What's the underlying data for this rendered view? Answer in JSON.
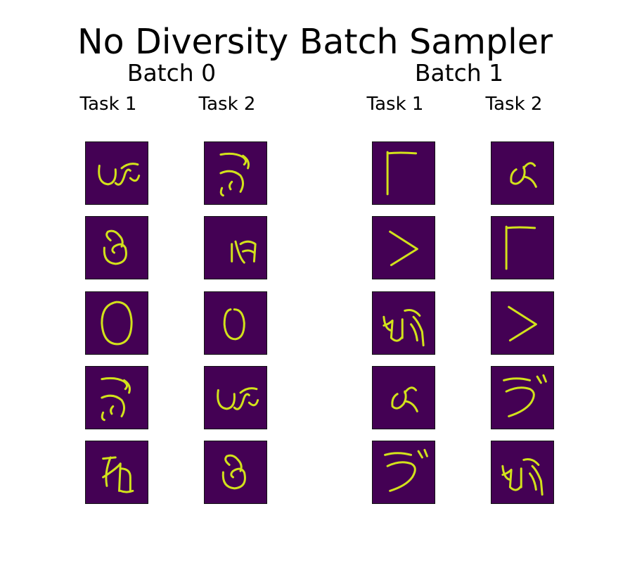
{
  "title": "No Diversity Batch Sampler",
  "batches": [
    {
      "label": "Batch 0",
      "tasks": [
        {
          "label": "Task 1",
          "glyphs": [
            "char-a",
            "char-b",
            "char-c",
            "char-d",
            "char-e"
          ]
        },
        {
          "label": "Task 2",
          "glyphs": [
            "char-d",
            "char-f",
            "char-g",
            "char-a",
            "char-b"
          ]
        }
      ]
    },
    {
      "label": "Batch 1",
      "tasks": [
        {
          "label": "Task 1",
          "glyphs": [
            "char-h",
            "char-i",
            "char-j",
            "char-k",
            "char-l"
          ]
        },
        {
          "label": "Task 2",
          "glyphs": [
            "char-k",
            "char-h",
            "char-i",
            "char-l",
            "char-j"
          ]
        }
      ]
    }
  ],
  "colors": {
    "background": "#440154",
    "stroke": "#d2e21b"
  }
}
